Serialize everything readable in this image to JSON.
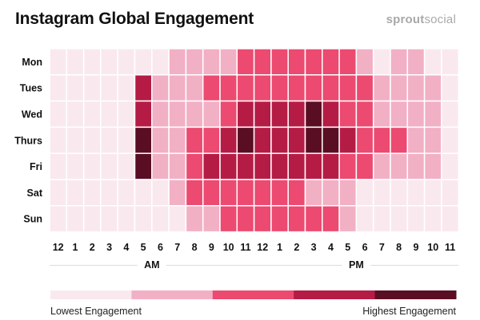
{
  "header": {
    "title": "Instagram Global Engagement",
    "brand_bold": "sprout",
    "brand_light": "social"
  },
  "legend": {
    "low_label": "Lowest Engagement",
    "high_label": "Highest Engagement",
    "colors": [
      "#f9e9ee",
      "#f2b0c5",
      "#ec4a70",
      "#b51c45",
      "#5a0e24"
    ]
  },
  "chart_data": {
    "type": "heatmap",
    "title": "Instagram Global Engagement",
    "y_categories": [
      "Mon",
      "Tues",
      "Wed",
      "Thurs",
      "Fri",
      "Sat",
      "Sun"
    ],
    "x_categories": [
      "12",
      "1",
      "2",
      "3",
      "4",
      "5",
      "6",
      "7",
      "8",
      "9",
      "10",
      "11",
      "12",
      "1",
      "2",
      "3",
      "4",
      "5",
      "6",
      "7",
      "8",
      "9",
      "10",
      "11"
    ],
    "x_groups": [
      {
        "label": "AM",
        "start": 0,
        "end": 11
      },
      {
        "label": "PM",
        "start": 12,
        "end": 23
      }
    ],
    "scale": "engagement level 0 (lowest) to 4 (highest)",
    "values": [
      [
        0,
        0,
        0,
        0,
        0,
        0,
        0,
        1,
        1,
        1,
        1,
        2,
        2,
        2,
        2,
        2,
        2,
        2,
        1,
        0,
        1,
        1,
        0,
        0
      ],
      [
        0,
        0,
        0,
        0,
        0,
        3,
        1,
        1,
        1,
        2,
        2,
        2,
        2,
        2,
        2,
        2,
        2,
        2,
        2,
        1,
        1,
        1,
        1,
        0
      ],
      [
        0,
        0,
        0,
        0,
        0,
        3,
        1,
        1,
        1,
        1,
        2,
        3,
        3,
        3,
        3,
        4,
        3,
        2,
        2,
        1,
        1,
        1,
        1,
        0
      ],
      [
        0,
        0,
        0,
        0,
        0,
        4,
        1,
        1,
        2,
        2,
        3,
        4,
        3,
        3,
        3,
        4,
        4,
        3,
        2,
        2,
        2,
        1,
        1,
        0
      ],
      [
        0,
        0,
        0,
        0,
        0,
        4,
        1,
        1,
        2,
        3,
        3,
        3,
        3,
        3,
        3,
        3,
        3,
        2,
        2,
        1,
        1,
        1,
        1,
        0
      ],
      [
        0,
        0,
        0,
        0,
        0,
        0,
        0,
        1,
        2,
        2,
        2,
        2,
        2,
        2,
        2,
        1,
        1,
        1,
        0,
        0,
        0,
        0,
        0,
        0
      ],
      [
        0,
        0,
        0,
        0,
        0,
        0,
        0,
        0,
        1,
        1,
        2,
        2,
        2,
        2,
        2,
        2,
        2,
        1,
        0,
        0,
        0,
        0,
        0,
        0
      ]
    ]
  }
}
